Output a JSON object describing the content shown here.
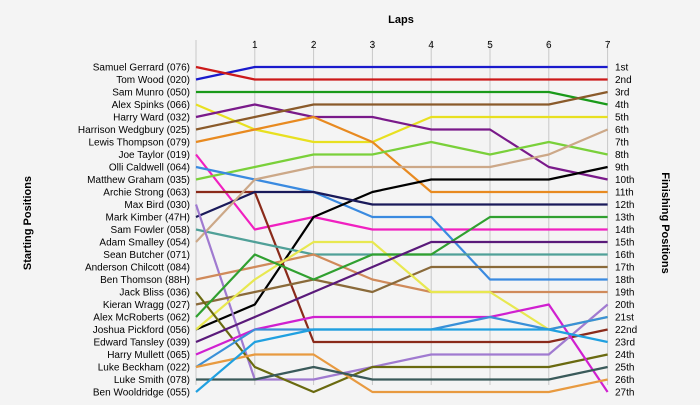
{
  "chart_data": {
    "type": "line",
    "title": "Laps",
    "ylabel_left": "Starting Positions",
    "ylabel_right": "Finishing Positions",
    "x": [
      0,
      1,
      2,
      3,
      4,
      5,
      6,
      7
    ],
    "lap_labels": [
      "1",
      "2",
      "3",
      "4",
      "5",
      "6",
      "7"
    ],
    "drivers": [
      "Samuel Gerrard (076)",
      "Tom Wood (020)",
      "Sam Munro (050)",
      "Alex Spinks (066)",
      "Harry Ward (032)",
      "Harrison Wedgbury (025)",
      "Lewis Thompson (079)",
      "Joe Taylor (019)",
      "Olli Caldwell (064)",
      "Matthew Graham (035)",
      "Archie Strong (063)",
      "Max Bird (030)",
      "Mark Kimber (47H)",
      "Sam Fowler (058)",
      "Adam Smalley (054)",
      "Sean Butcher (071)",
      "Anderson Chilcott (084)",
      "Ben Thomson (88H)",
      "Jack Bliss (036)",
      "Kieran Wragg (027)",
      "Alex McRoberts (062)",
      "Joshua Pickford (056)",
      "Edward Tansley (039)",
      "Harry Mullett (065)",
      "Luke Beckham (022)",
      "Luke Smith (078)",
      "Ben Wooldridge (055)"
    ],
    "finishing_labels": [
      "1st",
      "2nd",
      "3rd",
      "4th",
      "5th",
      "6th",
      "7th",
      "8th",
      "9th",
      "10th",
      "11th",
      "12th",
      "13th",
      "14th",
      "15th",
      "16th",
      "17th",
      "18th",
      "19th",
      "20th",
      "21st",
      "22nd",
      "23rd",
      "24th",
      "25th",
      "26th",
      "27th"
    ],
    "series": [
      {
        "color": "#1a1acc",
        "values": [
          2,
          1,
          1,
          1,
          1,
          1,
          1,
          1
        ]
      },
      {
        "color": "#cc1a1a",
        "values": [
          1,
          2,
          2,
          2,
          2,
          2,
          2,
          2
        ]
      },
      {
        "color": "#1a9a1a",
        "values": [
          3,
          3,
          3,
          3,
          3,
          3,
          3,
          4
        ]
      },
      {
        "color": "#e8e020",
        "values": [
          4,
          6,
          7,
          7,
          5,
          5,
          5,
          5
        ]
      },
      {
        "color": "#7a1a8a",
        "values": [
          5,
          4,
          5,
          5,
          6,
          6,
          9,
          10
        ]
      },
      {
        "color": "#8a5a2a",
        "values": [
          6,
          5,
          4,
          4,
          4,
          4,
          4,
          3
        ]
      },
      {
        "color": "#e88a20",
        "values": [
          7,
          6,
          5,
          7,
          11,
          11,
          11,
          11
        ]
      },
      {
        "color": "#f020c0",
        "values": [
          8,
          14,
          13,
          14,
          14,
          14,
          14,
          14
        ]
      },
      {
        "color": "#7ad03a",
        "values": [
          10,
          9,
          8,
          8,
          7,
          8,
          7,
          8
        ]
      },
      {
        "color": "#3a8ae0",
        "values": [
          9,
          10,
          11,
          13,
          13,
          18,
          18,
          18
        ]
      },
      {
        "color": "#000000",
        "values": [
          22,
          20,
          13,
          11,
          10,
          10,
          10,
          9
        ]
      },
      {
        "color": "#8a2a1a",
        "values": [
          11,
          11,
          23,
          23,
          23,
          23,
          23,
          22
        ]
      },
      {
        "color": "#1a1a5a",
        "values": [
          13,
          11,
          11,
          12,
          12,
          12,
          12,
          12
        ]
      },
      {
        "color": "#50a098",
        "values": [
          14,
          15,
          16,
          16,
          16,
          16,
          16,
          16
        ]
      },
      {
        "color": "#cca888",
        "values": [
          15,
          10,
          9,
          9,
          9,
          9,
          8,
          6
        ]
      },
      {
        "color": "#a07ad0",
        "values": [
          12,
          26,
          26,
          25,
          24,
          24,
          24,
          20
        ]
      },
      {
        "color": "#d08a5a",
        "values": [
          18,
          17,
          16,
          18,
          19,
          19,
          19,
          19
        ]
      },
      {
        "color": "#8a6a3a",
        "values": [
          20,
          19,
          18,
          19,
          17,
          17,
          17,
          17
        ]
      },
      {
        "color": "#e8e850",
        "values": [
          22,
          18,
          15,
          15,
          19,
          19,
          22,
          21
        ]
      },
      {
        "color": "#6a6a10",
        "values": [
          19,
          25,
          27,
          25,
          25,
          25,
          25,
          24
        ]
      },
      {
        "color": "#30a030",
        "values": [
          21,
          16,
          18,
          16,
          16,
          13,
          13,
          13
        ]
      },
      {
        "color": "#d020d0",
        "values": [
          24,
          22,
          21,
          21,
          21,
          21,
          20,
          27
        ]
      },
      {
        "color": "#5a1a7a",
        "values": [
          23,
          21,
          19,
          17,
          15,
          15,
          15,
          15
        ]
      },
      {
        "color": "#3a90d8",
        "values": [
          25,
          22,
          22,
          22,
          22,
          21,
          22,
          21
        ]
      },
      {
        "color": "#e89a40",
        "values": [
          25,
          24,
          24,
          27,
          27,
          27,
          27,
          26
        ]
      },
      {
        "color": "#3a5a5a",
        "values": [
          26,
          26,
          25,
          26,
          26,
          26,
          26,
          25
        ]
      },
      {
        "color": "#20a0e0",
        "values": [
          27,
          23,
          22,
          22,
          22,
          22,
          22,
          23
        ]
      }
    ]
  }
}
